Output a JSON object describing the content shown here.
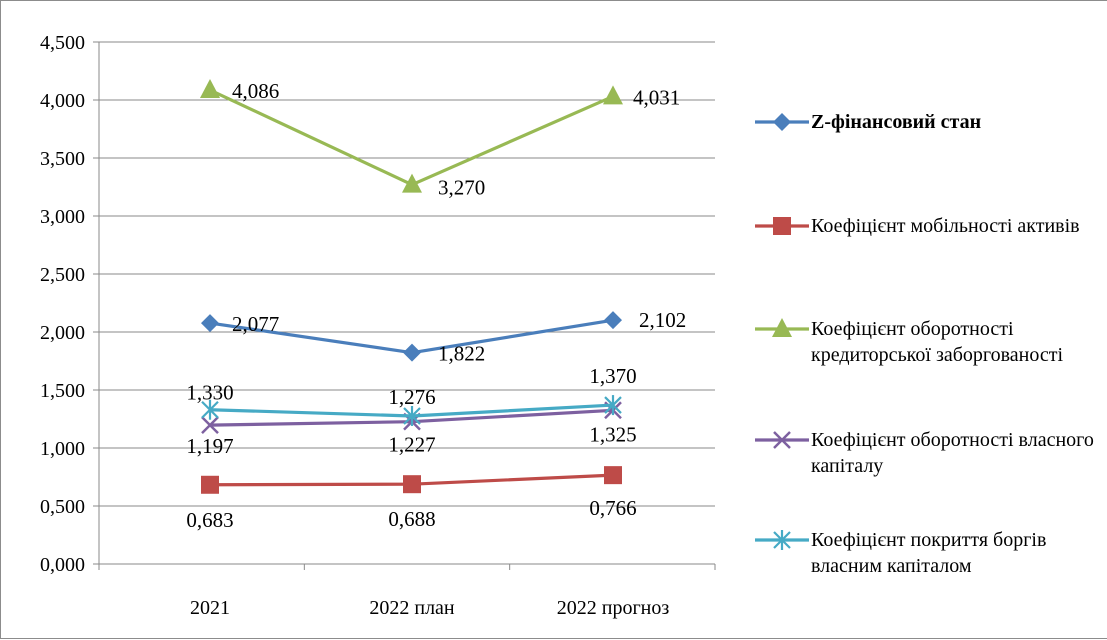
{
  "chart_data": {
    "type": "line",
    "categories": [
      "2021",
      "2022 план",
      "2022 прогноз"
    ],
    "ylim": [
      0,
      4.5
    ],
    "ytick_values": [
      0,
      0.5,
      1,
      1.5,
      2,
      2.5,
      3,
      3.5,
      4,
      4.5
    ],
    "ytick_labels": [
      "0,000",
      "0,500",
      "1,000",
      "1,500",
      "2,000",
      "2,500",
      "3,000",
      "3,500",
      "4,000",
      "4,500"
    ],
    "grid": true,
    "legend_position": "right",
    "series": [
      {
        "name": "Z-фінансовий стан",
        "values": [
          2.077,
          1.822,
          2.102
        ],
        "labels": [
          "2,077",
          "1,822",
          "2,102"
        ],
        "color": "#4a7ebb",
        "marker": "diamond"
      },
      {
        "name": "Коефіцієнт мобільності активів",
        "values": [
          0.683,
          0.688,
          0.766
        ],
        "labels": [
          "0,683",
          "0,688",
          "0,766"
        ],
        "color": "#be4b48",
        "marker": "square"
      },
      {
        "name": "Коефіцієнт оборотності кредиторської заборгованості",
        "values": [
          4.086,
          3.27,
          4.031
        ],
        "labels": [
          "4,086",
          "3,270",
          "4,031"
        ],
        "color": "#98b954",
        "marker": "triangle"
      },
      {
        "name": "Коефіцієнт оборотності власного капіталу",
        "values": [
          1.197,
          1.227,
          1.325
        ],
        "labels": [
          "1,197",
          "1,227",
          "1,325"
        ],
        "color": "#7d60a0",
        "marker": "x"
      },
      {
        "name": "Коефіцієнт покриття боргів власним капіталом",
        "values": [
          1.33,
          1.276,
          1.37
        ],
        "labels": [
          "1,330",
          "1,276",
          "1,370"
        ],
        "color": "#46aac5",
        "marker": "star"
      }
    ]
  }
}
